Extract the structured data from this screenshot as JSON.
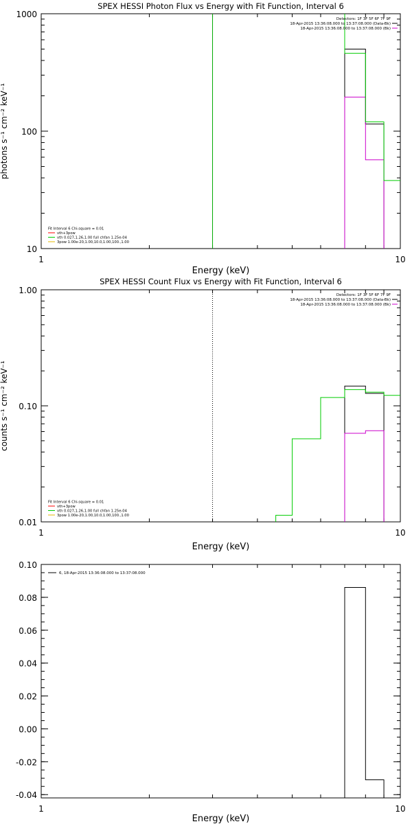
{
  "chart_data": [
    {
      "type": "line",
      "title": "SPEX HESSI Photon Flux vs Energy with Fit Function, Interval 6",
      "xlabel": "Energy (keV)",
      "ylabel": "photons s⁻¹ cm⁻² keV⁻¹",
      "xscale": "log",
      "yscale": "log",
      "xlim": [
        1,
        10
      ],
      "ylim": [
        10,
        1000
      ],
      "xticks": [
        {
          "v": 1,
          "label": "1"
        },
        {
          "v": 10,
          "label": "10"
        }
      ],
      "yticks": [
        {
          "v": 10,
          "label": "10"
        },
        {
          "v": 100,
          "label": "100"
        },
        {
          "v": 1000,
          "label": "1000"
        }
      ],
      "legend_position": "top-right",
      "legend_lines": [
        {
          "text": "Detectors: 1F 3F 5F 6F 7F 9F",
          "color": null
        },
        {
          "text": "18-Apr-2015 13:36:08.000 to 13:37:08.000 (Data-Bk)",
          "color": "#000000"
        },
        {
          "text": "18-Apr-2015 13:36:08.000 to 13:37:08.000 (Bk)",
          "color": "#cc00cc"
        }
      ],
      "fit_legend_position": "bottom-left",
      "fit_legend": [
        {
          "text": "Fit Interval  6    Chi-square = 0.01",
          "color": null
        },
        {
          "text": "vth+3pow",
          "color": "#ff0000"
        },
        {
          "text": "vth 0.027,1.26,1.00  full chfan 1.25e-04",
          "color": "#00cc00"
        },
        {
          "text": "3pow 1.00e-20,1.00,10.0,1.00,100.,1.00",
          "color": "#e6b800"
        }
      ],
      "vlines": [
        {
          "x": 3.0,
          "color": "#00aa00",
          "style": "solid"
        }
      ],
      "series": [
        {
          "name": "18-Apr-2015 13:36:08.000 to 13:37:08.000 (Data-Bk)",
          "color": "#000000",
          "step": true,
          "edges": [
            7.0,
            8.0,
            9.0
          ],
          "values": [
            500,
            115
          ]
        },
        {
          "name": "18-Apr-2015 13:36:08.000 to 13:37:08.000 (Bk)",
          "color": "#cc00cc",
          "step": true,
          "edges": [
            7.0,
            8.0,
            9.0
          ],
          "values": [
            195,
            57
          ]
        },
        {
          "color": "#00cc00",
          "step": true,
          "edges": [
            7.0,
            8.0,
            9.0,
            10.0
          ],
          "values": [
            460,
            120,
            38
          ],
          "start_top": true
        }
      ]
    },
    {
      "type": "line",
      "title": "SPEX HESSI Count Flux vs Energy with Fit Function, Interval 6",
      "xlabel": "Energy (keV)",
      "ylabel": "counts s⁻¹ cm⁻² keV⁻¹",
      "xscale": "log",
      "yscale": "log",
      "xlim": [
        1,
        10
      ],
      "ylim": [
        0.01,
        1.0
      ],
      "xticks": [
        {
          "v": 1,
          "label": "1"
        },
        {
          "v": 10,
          "label": "10"
        }
      ],
      "yticks": [
        {
          "v": 0.01,
          "label": "0.01"
        },
        {
          "v": 0.1,
          "label": "0.10"
        },
        {
          "v": 1.0,
          "label": "1.00"
        }
      ],
      "legend_position": "top-right",
      "legend_lines": [
        {
          "text": "Detectors: 1F 3F 5F 6F 7F 9F",
          "color": null
        },
        {
          "text": "18-Apr-2015 13:36:08.000 to 13:37:08.000 (Data-Bk)",
          "color": "#000000"
        },
        {
          "text": "18-Apr-2015 13:36:08.000 to 13:37:08.000 (Bk)",
          "color": "#cc00cc"
        }
      ],
      "fit_legend_position": "bottom-left",
      "fit_legend": [
        {
          "text": "Fit Interval  6    Chi-square = 0.01",
          "color": null
        },
        {
          "text": "vth+3pow",
          "color": "#ff0000"
        },
        {
          "text": "vth 0.027,1.26,1.00  full chfan 1.25e-04",
          "color": "#00cc00"
        },
        {
          "text": "3pow 1.00e-20,1.00,10.0,1.00,100.,1.00",
          "color": "#e6b800"
        }
      ],
      "vlines": [
        {
          "x": 3.0,
          "color": "#000000",
          "style": "dotted"
        }
      ],
      "series": [
        {
          "name": "18-Apr-2015 13:36:08.000 to 13:37:08.000 (Data-Bk)",
          "color": "#000000",
          "step": true,
          "edges": [
            7.0,
            8.0,
            9.0
          ],
          "values": [
            0.148,
            0.128
          ]
        },
        {
          "name": "18-Apr-2015 13:36:08.000 to 13:37:08.000 (Bk)",
          "color": "#cc00cc",
          "step": true,
          "edges": [
            7.0,
            8.0,
            9.0
          ],
          "values": [
            0.058,
            0.061
          ]
        },
        {
          "color": "#00cc00",
          "step": true,
          "edges": [
            4.5,
            5.0,
            6.0,
            7.0,
            8.0,
            9.0,
            10.0
          ],
          "values": [
            0.0114,
            0.052,
            0.118,
            0.138,
            0.131,
            0.123
          ]
        }
      ]
    },
    {
      "type": "line",
      "title": "",
      "xlabel": "Energy (keV)",
      "ylabel": "",
      "xscale": "log",
      "yscale": "linear",
      "xlim": [
        1,
        10
      ],
      "ylim": [
        -0.042,
        0.1
      ],
      "xticks": [
        {
          "v": 1,
          "label": "1"
        },
        {
          "v": 10,
          "label": "10"
        }
      ],
      "yticks": [
        {
          "v": -0.04,
          "label": "-0.04"
        },
        {
          "v": -0.02,
          "label": "-0.02"
        },
        {
          "v": 0.0,
          "label": "0.00"
        },
        {
          "v": 0.02,
          "label": "0.02"
        },
        {
          "v": 0.04,
          "label": "0.04"
        },
        {
          "v": 0.06,
          "label": "0.06"
        },
        {
          "v": 0.08,
          "label": "0.08"
        },
        {
          "v": 0.1,
          "label": "0.10"
        }
      ],
      "legend_position": "top-left",
      "legend_lines": [
        {
          "text": "6, 18-Apr-2015 13:36:08.000 to 13:37:08.000",
          "color": "#000000"
        }
      ],
      "fit_legend": [],
      "vlines": [],
      "series": [
        {
          "name": "6, 18-Apr-2015 13:36:08.000 to 13:37:08.000",
          "color": "#000000",
          "step": true,
          "edges": [
            7.0,
            8.0,
            9.0
          ],
          "values": [
            0.086,
            -0.031
          ]
        }
      ]
    }
  ]
}
